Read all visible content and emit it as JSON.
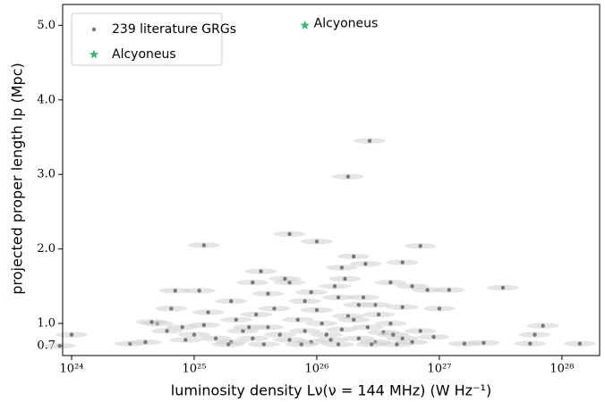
{
  "chart_data": {
    "type": "scatter",
    "xlabel": "luminosity density Lν(ν = 144 MHz) (W Hz⁻¹)",
    "ylabel": "projected proper length lp (Mpc)",
    "annotation": "Alcyoneus",
    "xscale": "log",
    "xlim": [
      8.45e+23,
      2.03e+28
    ],
    "ylim": [
      0.57,
      5.28
    ],
    "xticks": [
      {
        "value": 1e+24,
        "label": "10²⁴"
      },
      {
        "value": 1e+25,
        "label": "10²⁵"
      },
      {
        "value": 1e+26,
        "label": "10²⁶"
      },
      {
        "value": 1e+27,
        "label": "10²⁷"
      },
      {
        "value": 1e+28,
        "label": "10²⁸"
      }
    ],
    "yticks": [
      0.7,
      {
        "value": 1,
        "label": "1.0"
      },
      {
        "value": 2,
        "label": "2.0"
      },
      {
        "value": 3,
        "label": "3.0"
      },
      {
        "value": 4,
        "label": "4.0"
      },
      {
        "value": 5,
        "label": "5.0"
      }
    ],
    "legend": "upper left",
    "grid": false,
    "series": [
      {
        "name": "239 literature GRGs",
        "color": "#777777",
        "marker": "dot",
        "x": [
          1.2e+25,
          6e+25,
          1e+26,
          2.7e+26,
          1.8e+26,
          7e+26,
          5e+26,
          3.3e+27,
          1.4e+28,
          5.5e+27,
          6e+27,
          7e+27,
          2.3e+27,
          1.2e+27,
          1.6e+27,
          8e+23,
          1e+24,
          3e+24,
          7e+24,
          1.1e+25,
          3.5e+25,
          6e+25,
          1.6e+26,
          2e+26,
          2.5e+26,
          4e+26,
          6e+26,
          8e+26,
          1e+27,
          2e+25,
          4e+25,
          8e+25,
          1.5e+26,
          2.4e+26,
          3e+26,
          5e+24,
          6e+24,
          8e+24,
          1e+25,
          1.5e+25,
          2e+25,
          2.5e+25,
          3e+25,
          4e+25,
          5e+25,
          6e+25,
          7e+25,
          8e+25,
          9e+25,
          1.1e+26,
          1.2e+26,
          1.3e+26,
          1.6e+26,
          1.8e+26,
          2.2e+26,
          2.6e+26,
          3e+26,
          3.5e+26,
          4e+26,
          5e+26,
          6e+26,
          7e+26,
          9e+26,
          4e+24,
          4.5e+24,
          1.3e+25,
          2.2e+25,
          3.2e+25,
          4.5e+25,
          1e+26,
          1.4e+26,
          2e+26,
          3.2e+26,
          1.9e+25,
          3.7e+25,
          7.5e+25,
          1.5e+26,
          2.8e+26,
          4.5e+26,
          5.5e+25,
          9e+25,
          1.7e+26,
          2.2e+26,
          5e+26,
          3e+25,
          6.5e+24,
          2.8e+25,
          8.5e+24,
          1.2e+25,
          4.2e+26
        ],
        "y": [
          2.05,
          2.2,
          2.1,
          3.45,
          2.97,
          2.04,
          1.82,
          1.48,
          0.73,
          0.73,
          0.85,
          0.97,
          0.74,
          1.45,
          0.73,
          0.7,
          0.85,
          0.73,
          1.44,
          1.44,
          1.7,
          1.55,
          1.75,
          1.9,
          1.8,
          1.55,
          1.5,
          1.45,
          1.2,
          1.3,
          1.4,
          1.3,
          1.35,
          1.35,
          1.25,
          1.0,
          0.9,
          0.95,
          0.85,
          0.8,
          0.75,
          0.9,
          0.8,
          0.95,
          0.85,
          0.78,
          1.05,
          0.9,
          0.75,
          1.0,
          0.85,
          0.78,
          0.92,
          1.1,
          0.8,
          0.95,
          0.75,
          0.88,
          1.0,
          0.8,
          0.75,
          0.9,
          0.82,
          0.75,
          1.02,
          1.15,
          1.05,
          1.12,
          1.2,
          1.18,
          1.5,
          1.05,
          1.12,
          0.72,
          0.72,
          0.72,
          0.72,
          0.72,
          0.72,
          1.6,
          1.42,
          1.6,
          1.25,
          1.22,
          1.55,
          1.2,
          0.95,
          0.78,
          0.98,
          0.85
        ]
      },
      {
        "name": "Alcyoneus",
        "color": "#3cb371",
        "marker": "star",
        "x": [
          8e+25
        ],
        "y": [
          5.0
        ]
      }
    ]
  }
}
